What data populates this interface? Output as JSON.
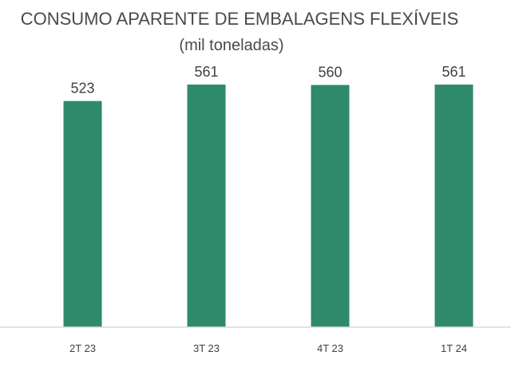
{
  "chart_data": {
    "type": "bar",
    "title": "CONSUMO APARENTE DE EMBALAGENS FLEXÍVEIS",
    "subtitle": "(mil toneladas)",
    "categories": [
      "2T 23",
      "3T 23",
      "4T 23",
      "1T 24"
    ],
    "values": [
      523,
      561,
      560,
      561
    ],
    "data_labels": [
      "523",
      "561",
      "560",
      "561"
    ],
    "xlabel": "",
    "ylabel": "",
    "ylim": [
      0,
      561
    ],
    "grid": false,
    "legend": "none",
    "colors": {
      "bar": "#2e8a6a",
      "axis": "#d9d9d9",
      "text": "#404040"
    }
  }
}
